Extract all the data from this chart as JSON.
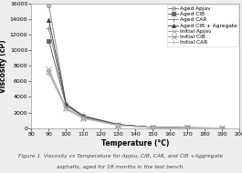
{
  "xlabel": "Temperature (°C)",
  "ylabel": "Viscosity (cP)",
  "caption_line1": "Figure 1. Viscosity vs Temperature for Apjou, CIB, CAR, and CIB +Aggregate",
  "caption_line2": "asphalts, aged for 18 months in the test bench.",
  "xlim": [
    80,
    200
  ],
  "ylim": [
    0,
    16000
  ],
  "xticks": [
    80,
    90,
    100,
    110,
    120,
    130,
    140,
    150,
    160,
    170,
    180,
    190,
    200
  ],
  "yticks": [
    0,
    2000,
    4000,
    6000,
    8000,
    10000,
    12000,
    14000,
    16000
  ],
  "series": [
    {
      "label": "Aged Apjav",
      "marker": "o",
      "fillstyle": "none",
      "linestyle": "-",
      "color": "#888888",
      "markersize": 3,
      "linewidth": 0.7,
      "x": [
        90,
        100,
        110,
        130,
        150,
        170,
        190
      ],
      "y": [
        15800,
        3100,
        1550,
        450,
        80,
        30,
        10
      ]
    },
    {
      "label": "Aged CIB",
      "marker": "s",
      "fillstyle": "full",
      "linestyle": "-",
      "color": "#666666",
      "markersize": 3,
      "linewidth": 0.7,
      "x": [
        90,
        100,
        110,
        130,
        150,
        170,
        190
      ],
      "y": [
        11200,
        2900,
        1450,
        430,
        75,
        25,
        8
      ]
    },
    {
      "label": "Aged CAR",
      "marker": "+",
      "fillstyle": "full",
      "linestyle": "-",
      "color": "#888888",
      "markersize": 4,
      "linewidth": 0.7,
      "x": [
        90,
        100,
        110,
        130,
        150,
        170,
        190
      ],
      "y": [
        12800,
        2950,
        1480,
        440,
        78,
        28,
        9
      ]
    },
    {
      "label": "Aged CIB + Agregate",
      "marker": "^",
      "fillstyle": "full",
      "linestyle": "-",
      "color": "#444444",
      "markersize": 3,
      "linewidth": 0.7,
      "x": [
        90,
        100,
        110,
        130,
        150,
        170,
        190
      ],
      "y": [
        13900,
        3050,
        1520,
        450,
        82,
        32,
        11
      ]
    },
    {
      "label": "Initial Apjav",
      "marker": "x",
      "fillstyle": "full",
      "linestyle": "-",
      "color": "#aaaaaa",
      "markersize": 4,
      "linewidth": 0.7,
      "x": [
        90,
        100,
        110,
        130,
        150,
        170,
        190
      ],
      "y": [
        7600,
        2600,
        1300,
        370,
        60,
        20,
        6
      ]
    },
    {
      "label": "Initial CIB",
      "marker": "x",
      "fillstyle": "full",
      "linestyle": "-",
      "color": "#999999",
      "markersize": 4,
      "linewidth": 0.7,
      "x": [
        90,
        100,
        110,
        130,
        150,
        170,
        190
      ],
      "y": [
        7200,
        2500,
        1250,
        355,
        55,
        18,
        5
      ]
    },
    {
      "label": "Initial CAR",
      "marker": "+",
      "fillstyle": "full",
      "linestyle": "-",
      "color": "#bbbbbb",
      "markersize": 4,
      "linewidth": 0.7,
      "x": [
        90,
        100,
        110,
        130,
        150,
        170,
        190
      ],
      "y": [
        7000,
        2400,
        1200,
        340,
        52,
        16,
        4
      ]
    }
  ],
  "legend_fontsize": 4.2,
  "axis_label_fontsize": 5.5,
  "tick_fontsize": 4.5,
  "caption_fontsize": 4.2,
  "bg_color": "#eeeeee"
}
